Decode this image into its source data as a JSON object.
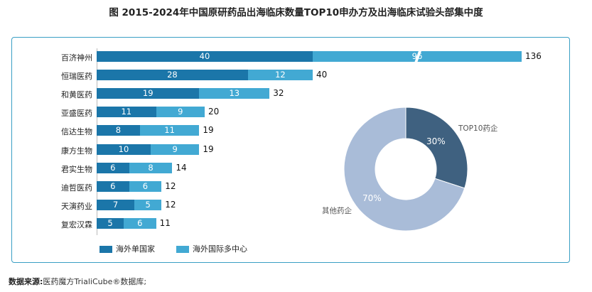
{
  "title": "图 2015-2024年中国原研药品出海临床数量TOP10申办方及出海临床试验头部集中度",
  "chart_data": [
    {
      "type": "bar",
      "orientation": "horizontal",
      "stacked": true,
      "categories": [
        "百济神州",
        "恒瑞医药",
        "和黄医药",
        "亚盛医药",
        "信达生物",
        "康方生物",
        "君实生物",
        "迪哲医药",
        "天演药业",
        "复宏汉霖"
      ],
      "series": [
        {
          "name": "海外单国家",
          "color": "#1b76a9",
          "values": [
            40,
            28,
            19,
            11,
            8,
            10,
            6,
            6,
            7,
            5
          ]
        },
        {
          "name": "海外国际多中心",
          "color": "#42a9d3",
          "values": [
            96,
            12,
            13,
            9,
            11,
            9,
            8,
            6,
            5,
            6
          ]
        }
      ],
      "totals": [
        136,
        40,
        32,
        20,
        19,
        19,
        14,
        12,
        12,
        11
      ],
      "axis_break": "百济神州",
      "legend_position": "bottom-left"
    },
    {
      "type": "pie",
      "donut": true,
      "slices": [
        {
          "label": "TOP10药企",
          "value": 30,
          "display": "30%",
          "color": "#3f6180"
        },
        {
          "label": "其他药企",
          "value": 70,
          "display": "70%",
          "color": "#a9bcd8"
        }
      ]
    }
  ],
  "source": {
    "label": "数据来源:",
    "text": "医药魔方TrialiCube®数据库;"
  }
}
